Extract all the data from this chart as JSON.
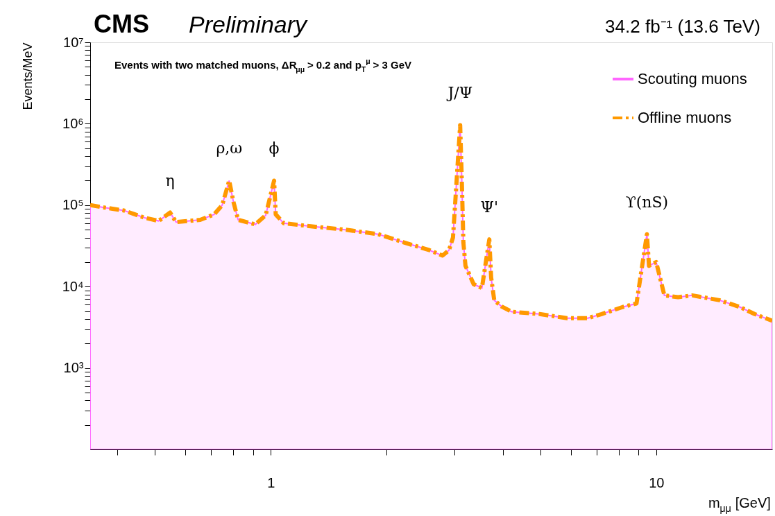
{
  "chart_data": {
    "type": "area",
    "title": "CMS",
    "subtitle": "Preliminary",
    "xlabel": "m$_{μμ}$ [GeV]",
    "ylabel": "Events/MeV",
    "annotations": [
      "34.2 fb⁻¹ (13.6 TeV)",
      "Events with two matched muons, ΔR$_{μμ}$ > 0.2 and p$_{T}$$^{μ}$ > 3 GeV",
      {
        "text": "η",
        "x": 0.548,
        "y": 81000
      },
      {
        "text": "ρ,ω",
        "x": 0.78,
        "y": 200000
      },
      {
        "text": "ϕ",
        "x": 1.02,
        "y": 200000
      },
      {
        "text": "J/Ψ",
        "x": 3.1,
        "y": 960000
      },
      {
        "text": "Ψ'",
        "x": 3.69,
        "y": 38000
      },
      {
        "text": "ϒ(nS)",
        "x": 9.46,
        "y": 44000
      }
    ],
    "x": [
      0.34,
      0.367,
      0.416,
      0.471,
      0.512,
      0.548,
      0.568,
      0.656,
      0.713,
      0.748,
      0.78,
      0.8,
      0.823,
      0.912,
      0.97,
      1.02,
      1.03,
      1.08,
      1.27,
      1.56,
      1.9,
      2.21,
      2.58,
      2.79,
      2.9,
      2.97,
      3.1,
      3.13,
      3.16,
      3.2,
      3.36,
      3.53,
      3.69,
      3.73,
      3.8,
      3.97,
      4.22,
      4.98,
      5.87,
      6.65,
      7.22,
      8.18,
      8.89,
      9.46,
      9.58,
      10.0,
      10.15,
      10.5,
      11.4,
      12.4,
      14.6,
      16.5,
      18.0,
      20
    ],
    "series": [
      {
        "name": "Scouting muons",
        "color": "#ff66ff",
        "line_style": "solid",
        "values": [
          100000,
          94000,
          86000,
          70000,
          64000,
          81000,
          62000,
          66000,
          77000,
          100000,
          200000,
          110000,
          66000,
          58000,
          75000,
          200000,
          77000,
          60000,
          55000,
          50000,
          44000,
          35000,
          28000,
          24000,
          28000,
          40000,
          960000,
          210000,
          35000,
          18000,
          10700,
          9600,
          38000,
          13000,
          6800,
          5700,
          4900,
          4600,
          4100,
          4100,
          4600,
          5600,
          6200,
          44000,
          18000,
          20000,
          15000,
          7800,
          7400,
          7800,
          6800,
          5600,
          4600,
          3800
        ]
      },
      {
        "name": "Offline muons",
        "type": "line",
        "color": "#ff9900",
        "line_style": "dashed",
        "values": [
          100000,
          94000,
          86000,
          70000,
          64000,
          81000,
          62000,
          66000,
          77000,
          100000,
          200000,
          110000,
          66000,
          58000,
          75000,
          200000,
          77000,
          60000,
          55000,
          50000,
          44000,
          35000,
          28000,
          24000,
          28000,
          40000,
          960000,
          210000,
          35000,
          18000,
          10700,
          9600,
          38000,
          13000,
          6800,
          5700,
          4900,
          4600,
          4100,
          4100,
          4600,
          5600,
          6200,
          44000,
          18000,
          20000,
          15000,
          7800,
          7400,
          7800,
          6800,
          5600,
          4600,
          3800
        ]
      }
    ],
    "log": "xy",
    "grid": false,
    "legend": "top right",
    "marker": "none",
    "xlim": [
      0.34,
      20
    ],
    "xticks": [
      {
        "value": 0.4,
        "label": null
      },
      {
        "value": 0.5,
        "label": null
      },
      {
        "value": 0.6,
        "label": null
      },
      {
        "value": 0.7,
        "label": null
      },
      {
        "value": 0.8,
        "label": null
      },
      {
        "value": 0.9,
        "label": null
      },
      1,
      {
        "value": 2,
        "label": null
      },
      {
        "value": 3,
        "label": null
      },
      {
        "value": 4,
        "label": null
      },
      {
        "value": 5,
        "label": null
      },
      {
        "value": 6,
        "label": null
      },
      {
        "value": 7,
        "label": null
      },
      {
        "value": 8,
        "label": null
      },
      {
        "value": 9,
        "label": null
      },
      10
    ],
    "ylim": [
      100,
      10000000
    ],
    "yticks": [
      {
        "value": 200,
        "label": null
      },
      {
        "value": 300,
        "label": null
      },
      {
        "value": 400,
        "label": null
      },
      {
        "value": 500,
        "label": null
      },
      {
        "value": 600,
        "label": null
      },
      {
        "value": 700,
        "label": null
      },
      {
        "value": 800,
        "label": null
      },
      {
        "value": 900,
        "label": null
      },
      {
        "value": 1000,
        "label": "10³"
      },
      {
        "value": 2000,
        "label": null
      },
      {
        "value": 3000,
        "label": null
      },
      {
        "value": 4000,
        "label": null
      },
      {
        "value": 5000,
        "label": null
      },
      {
        "value": 6000,
        "label": null
      },
      {
        "value": 7000,
        "label": null
      },
      {
        "value": 8000,
        "label": null
      },
      {
        "value": 9000,
        "label": null
      },
      {
        "value": 10000,
        "label": "10⁴"
      },
      {
        "value": 20000,
        "label": null
      },
      {
        "value": 30000,
        "label": null
      },
      {
        "value": 40000,
        "label": null
      },
      {
        "value": 50000,
        "label": null
      },
      {
        "value": 60000,
        "label": null
      },
      {
        "value": 70000,
        "label": null
      },
      {
        "value": 80000,
        "label": null
      },
      {
        "value": 90000,
        "label": null
      },
      {
        "value": 100000,
        "label": "10⁵"
      },
      {
        "value": 200000,
        "label": null
      },
      {
        "value": 300000,
        "label": null
      },
      {
        "value": 400000,
        "label": null
      },
      {
        "value": 500000,
        "label": null
      },
      {
        "value": 600000,
        "label": null
      },
      {
        "value": 700000,
        "label": null
      },
      {
        "value": 800000,
        "label": null
      },
      {
        "value": 900000,
        "label": null
      },
      {
        "value": 1000000,
        "label": "10⁶"
      },
      {
        "value": 2000000,
        "label": null
      },
      {
        "value": 3000000,
        "label": null
      },
      {
        "value": 4000000,
        "label": null
      },
      {
        "value": 5000000,
        "label": null
      },
      {
        "value": 6000000,
        "label": null
      },
      {
        "value": 7000000,
        "label": null
      },
      {
        "value": 8000000,
        "label": null
      },
      {
        "value": 9000000,
        "label": null
      },
      {
        "value": 10000000,
        "label": "10⁷"
      }
    ]
  }
}
